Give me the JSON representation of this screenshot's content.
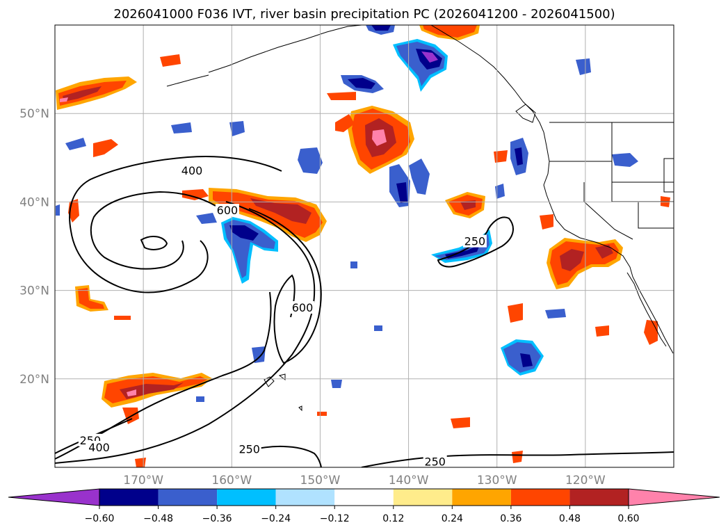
{
  "chart_data": {
    "type": "heatmap",
    "title": "2026041000 F036 IVT, river basin precipitation PC (2026041200 - 2026041500)",
    "projection": "lat-lon map of the North Pacific",
    "lon_range": [
      -180,
      -110
    ],
    "lat_range": [
      10,
      60
    ],
    "lon_ticks": [
      -170,
      -160,
      -150,
      -140,
      -130,
      -120
    ],
    "lon_tick_labels": [
      "170°W",
      "160°W",
      "150°W",
      "140°W",
      "130°W",
      "120°W"
    ],
    "lat_ticks": [
      20,
      30,
      40,
      50
    ],
    "lat_tick_labels": [
      "20°N",
      "30°N",
      "40°N",
      "50°N"
    ],
    "grid": true,
    "ivt_contour_levels": [
      250,
      400,
      600
    ],
    "ivt_contour_labels": [
      {
        "text": "400",
        "lon": -164.5,
        "lat": 43.5
      },
      {
        "text": "600",
        "lon": -160.5,
        "lat": 39.0
      },
      {
        "text": "600",
        "lon": -152.0,
        "lat": 28.0
      },
      {
        "text": "250",
        "lon": -132.5,
        "lat": 35.5
      },
      {
        "text": "250",
        "lon": -176.0,
        "lat": 13.0
      },
      {
        "text": "400",
        "lon": -175.0,
        "lat": 12.2
      },
      {
        "text": "250",
        "lon": -158.0,
        "lat": 12.0
      },
      {
        "text": "250",
        "lon": -137.0,
        "lat": 10.6
      }
    ],
    "colorbar": {
      "boundaries": [
        -0.72,
        -0.6,
        -0.48,
        -0.36,
        -0.24,
        -0.12,
        0.12,
        0.24,
        0.36,
        0.48,
        0.6,
        0.72
      ],
      "colors": [
        "#9932cc",
        "#00008b",
        "#3a5fcd",
        "#00bfff",
        "#b0e2ff",
        "#ffffff",
        "#ffec8b",
        "#ffa500",
        "#ff4500",
        "#b22222",
        "#ff82ab"
      ],
      "tick_values": [
        -0.6,
        -0.48,
        -0.36,
        -0.24,
        -0.12,
        0.12,
        0.24,
        0.36,
        0.48,
        0.6
      ],
      "tick_labels": [
        "−0.60",
        "−0.48",
        "−0.36",
        "−0.24",
        "−0.12",
        "0.12",
        "0.24",
        "0.36",
        "0.48",
        "0.60"
      ],
      "extend": "both"
    }
  }
}
